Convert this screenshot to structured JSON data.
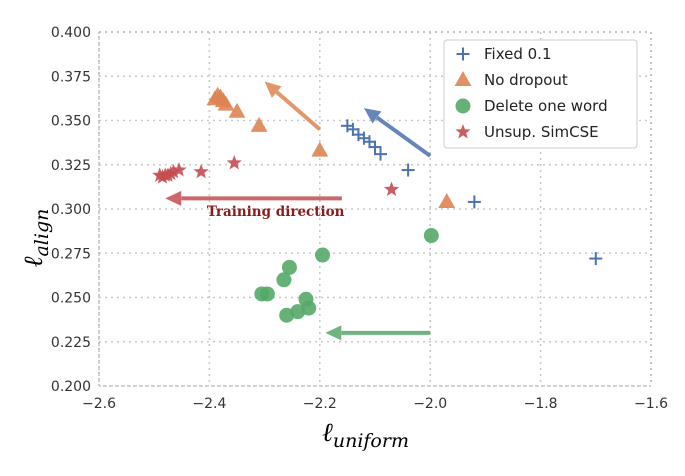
{
  "chart_data": {
    "type": "scatter",
    "xlabel_main": "ℓ",
    "xlabel_sub": "uniform",
    "ylabel_main": "ℓ",
    "ylabel_sub": "align",
    "xlim": [
      -2.6,
      -1.6
    ],
    "ylim": [
      0.2,
      0.4
    ],
    "xticks": [
      -2.6,
      -2.4,
      -2.2,
      -2.0,
      -1.8,
      -1.6
    ],
    "xtick_labels": [
      "−2.6",
      "−2.4",
      "−2.2",
      "−2.0",
      "−1.8",
      "−1.6"
    ],
    "yticks": [
      0.2,
      0.225,
      0.25,
      0.275,
      0.3,
      0.325,
      0.35,
      0.375,
      0.4
    ],
    "ytick_labels": [
      "0.200",
      "0.225",
      "0.250",
      "0.275",
      "0.300",
      "0.325",
      "0.350",
      "0.375",
      "0.400"
    ],
    "grid": true,
    "legend_position": "top-right",
    "series": [
      {
        "name": "Fixed 0.1",
        "marker": "plus",
        "color": "#4C72B0",
        "points": [
          [
            -2.15,
            0.347
          ],
          [
            -2.14,
            0.345
          ],
          [
            -2.13,
            0.342
          ],
          [
            -2.12,
            0.34
          ],
          [
            -2.11,
            0.338
          ],
          [
            -2.1,
            0.335
          ],
          [
            -2.09,
            0.331
          ],
          [
            -2.04,
            0.322
          ],
          [
            -1.92,
            0.304
          ],
          [
            -1.7,
            0.272
          ]
        ]
      },
      {
        "name": "No dropout",
        "marker": "triangle",
        "color": "#DD8452",
        "points": [
          [
            -2.39,
            0.362
          ],
          [
            -2.385,
            0.364
          ],
          [
            -2.38,
            0.363
          ],
          [
            -2.375,
            0.361
          ],
          [
            -2.37,
            0.359
          ],
          [
            -2.35,
            0.355
          ],
          [
            -2.31,
            0.347
          ],
          [
            -2.2,
            0.333
          ],
          [
            -1.97,
            0.304
          ]
        ]
      },
      {
        "name": "Delete one word",
        "marker": "circle",
        "color": "#55A868",
        "points": [
          [
            -1.998,
            0.285
          ],
          [
            -2.195,
            0.274
          ],
          [
            -2.255,
            0.267
          ],
          [
            -2.265,
            0.26
          ],
          [
            -2.295,
            0.252
          ],
          [
            -2.305,
            0.252
          ],
          [
            -2.225,
            0.249
          ],
          [
            -2.22,
            0.244
          ],
          [
            -2.24,
            0.242
          ],
          [
            -2.26,
            0.24
          ]
        ]
      },
      {
        "name": "Unsup. SimCSE",
        "marker": "star",
        "color": "#C44E52",
        "points": [
          [
            -2.49,
            0.319
          ],
          [
            -2.485,
            0.318
          ],
          [
            -2.48,
            0.319
          ],
          [
            -2.475,
            0.319
          ],
          [
            -2.47,
            0.32
          ],
          [
            -2.465,
            0.321
          ],
          [
            -2.455,
            0.322
          ],
          [
            -2.415,
            0.321
          ],
          [
            -2.355,
            0.326
          ],
          [
            -2.07,
            0.311
          ]
        ]
      }
    ],
    "arrows": [
      {
        "color": "#DD8452",
        "from": [
          -2.2,
          0.345
        ],
        "to": [
          -2.3,
          0.372
        ]
      },
      {
        "color": "#4C72B0",
        "from": [
          -2.0,
          0.33
        ],
        "to": [
          -2.12,
          0.357
        ]
      },
      {
        "color": "#C44E52",
        "from": [
          -2.16,
          0.306
        ],
        "to": [
          -2.48,
          0.306
        ]
      },
      {
        "color": "#55A868",
        "from": [
          -2.0,
          0.23
        ],
        "to": [
          -2.19,
          0.23
        ]
      }
    ],
    "annotation": {
      "text": "Training direction",
      "x": -2.28,
      "y": 0.299,
      "color": "#8B1A1A"
    }
  }
}
